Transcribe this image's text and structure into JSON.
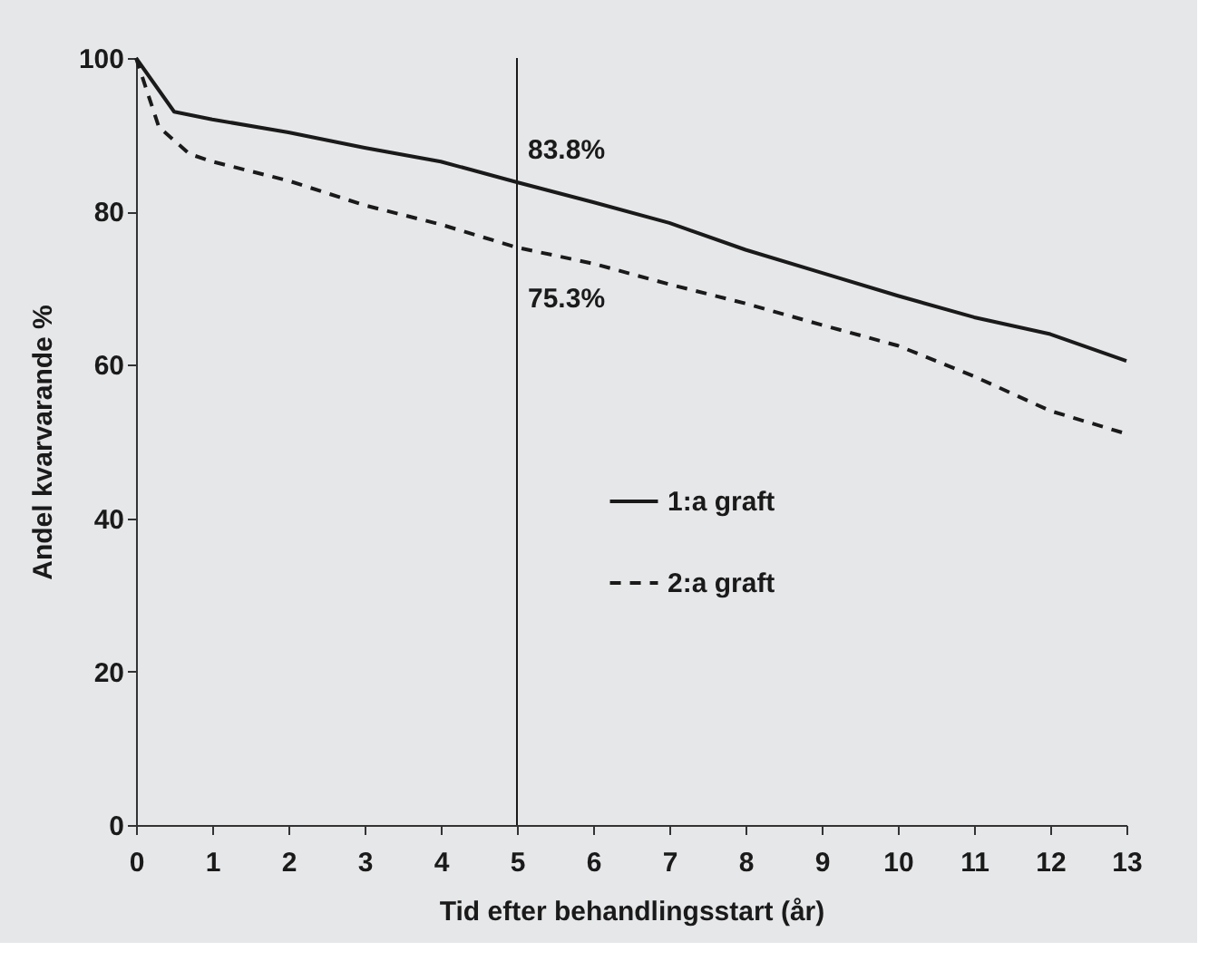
{
  "chart_data": {
    "type": "line",
    "xlabel": "Tid efter behandlingsstart (år)",
    "ylabel": "Andel kvarvarande %",
    "xlim": [
      0,
      13
    ],
    "xticks": [
      0,
      1,
      2,
      3,
      4,
      5,
      6,
      7,
      8,
      9,
      10,
      11,
      12,
      13
    ],
    "ylim": [
      0,
      100
    ],
    "yticks": [
      0,
      20,
      40,
      60,
      80,
      100
    ],
    "grid": false,
    "legend": "right",
    "marker": "none",
    "series": [
      {
        "name": "1:a graft",
        "color": "#1a1a1a",
        "line_style": "solid",
        "x": [
          0,
          0.5,
          1,
          2,
          3,
          4,
          5,
          6,
          7,
          8,
          9,
          10,
          11,
          12,
          13
        ],
        "values": [
          100,
          93,
          92,
          90.3,
          88.3,
          86.5,
          83.8,
          81.2,
          78.5,
          75,
          72,
          69,
          66.2,
          64,
          60.5
        ]
      },
      {
        "name": "2:a graft",
        "color": "#1a1a1a",
        "line_style": "dashed",
        "x": [
          0,
          0.3,
          0.7,
          1,
          2,
          3,
          4,
          5,
          6,
          7,
          8,
          9,
          10,
          11,
          12,
          13
        ],
        "values": [
          100,
          91,
          87.5,
          86.5,
          84,
          80.8,
          78.3,
          75.3,
          73.2,
          70.5,
          68,
          65.2,
          62.5,
          58.5,
          54,
          51
        ]
      }
    ],
    "ref_lines": [
      {
        "axis": "x",
        "value": 5,
        "label": null,
        "color": "#1a1a1a"
      }
    ],
    "annotations": [
      {
        "text": "83.8%",
        "x": 5,
        "y": 83.8
      },
      {
        "text": "75.3%",
        "x": 5,
        "y": 75.3
      }
    ]
  }
}
